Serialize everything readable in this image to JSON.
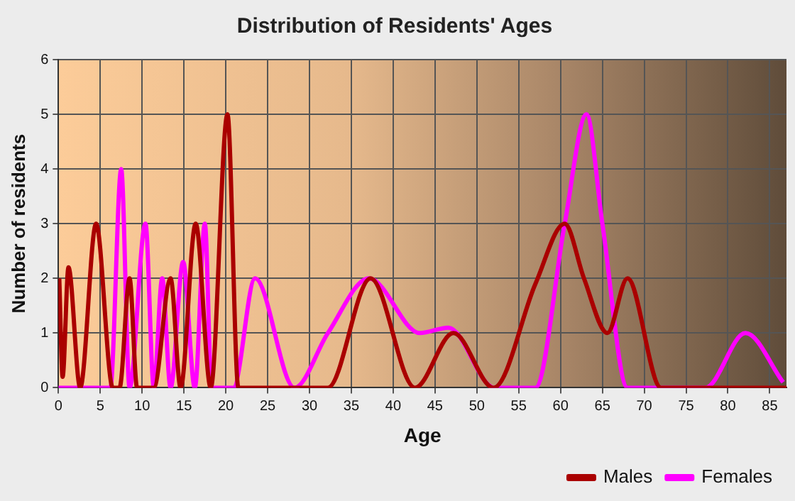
{
  "chart_data": {
    "type": "line",
    "title": "Distribution of Residents' Ages",
    "xlabel": "Age",
    "ylabel": "Number of residents",
    "xlim": [
      0,
      87
    ],
    "xticks": [
      0,
      5,
      10,
      15,
      20,
      25,
      30,
      35,
      40,
      45,
      50,
      55,
      60,
      65,
      70,
      75,
      80,
      85
    ],
    "ylim": [
      0,
      6
    ],
    "yticks": [
      0,
      1,
      2,
      3,
      4,
      5,
      6
    ],
    "grid": true,
    "legend": "bottom right",
    "marker": "none",
    "line_style": "solid",
    "series": [
      {
        "name": "Males",
        "color": "#aa0000",
        "x": [
          0.1,
          0.5,
          1.2,
          2.6,
          4.5,
          6.5,
          7.3,
          8.5,
          9.4,
          11.4,
          13.4,
          14.6,
          16.4,
          18.2,
          20.2,
          21.5,
          32.2,
          37.3,
          42.6,
          47.2,
          52,
          57,
          60.5,
          62.8,
          65.6,
          68,
          72,
          87
        ],
        "values": [
          2,
          0.2,
          2.2,
          0,
          3,
          0,
          0,
          2,
          0,
          0,
          2,
          0,
          3,
          0,
          5,
          0,
          0,
          2,
          0,
          1,
          0,
          1.9,
          3,
          2,
          1,
          2,
          0,
          0
        ]
      },
      {
        "name": "Females",
        "color": "#ff00ff",
        "x": [
          0,
          6.2,
          7.5,
          8.5,
          10.4,
          11.4,
          12.4,
          13.4,
          14.9,
          16.3,
          17.5,
          18.3,
          20.9,
          23.5,
          28.2,
          32.2,
          37.1,
          43.2,
          46.6,
          52.1,
          57,
          60.5,
          63.1,
          65,
          68,
          77.3,
          82.1,
          86.6
        ],
        "values": [
          0,
          0,
          4,
          0,
          3,
          0,
          2,
          0,
          2.3,
          0,
          3,
          0,
          0,
          2,
          0,
          1,
          2,
          1,
          1.1,
          0,
          0,
          3,
          5,
          3,
          0,
          0,
          1,
          0.1
        ]
      }
    ]
  }
}
